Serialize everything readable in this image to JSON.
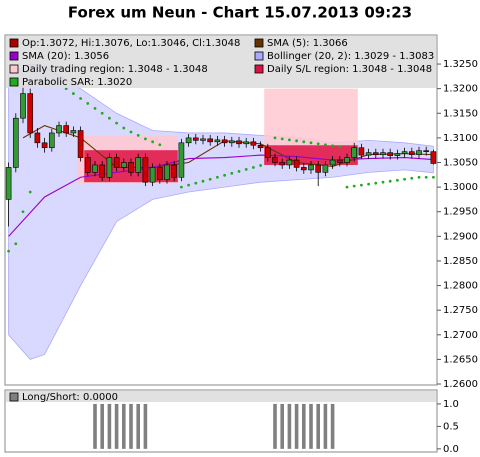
{
  "chart_data": [
    {
      "type": "candlestick",
      "title": "Forex um Neun - Chart 15.07.2013 09:23",
      "xlim": [
        -0.5,
        59.5
      ],
      "ylim": [
        1.2598,
        1.3309
      ],
      "yticks": [
        {
          "value": 1.26,
          "label": "1.2600"
        },
        {
          "value": 1.265,
          "label": "1.2650"
        },
        {
          "value": 1.27,
          "label": "1.2700"
        },
        {
          "value": 1.275,
          "label": "1.2750"
        },
        {
          "value": 1.28,
          "label": "1.2800"
        },
        {
          "value": 1.285,
          "label": "1.2850"
        },
        {
          "value": 1.29,
          "label": "1.2900"
        },
        {
          "value": 1.295,
          "label": "1.2950"
        },
        {
          "value": 1.3,
          "label": "1.3000"
        },
        {
          "value": 1.305,
          "label": "1.3050"
        },
        {
          "value": 1.31,
          "label": "1.3100"
        },
        {
          "value": 1.315,
          "label": "1.3150"
        },
        {
          "value": 1.32,
          "label": "1.3200"
        },
        {
          "value": 1.325,
          "label": "1.3250"
        }
      ],
      "series": [
        {
          "name": "Op:1.3072, Hi:1.3076, Lo:1.3046, Cl:1.3048",
          "type": "candle",
          "color": "#aa0000",
          "up_color": "#339933",
          "down_color": "#cc0000",
          "open": [
            1.2975,
            1.304,
            1.314,
            1.319,
            1.311,
            1.309,
            1.308,
            1.311,
            1.3125,
            1.311,
            1.3115,
            1.306,
            1.303,
            1.3045,
            1.302,
            1.306,
            1.304,
            1.305,
            1.303,
            1.306,
            1.301,
            1.304,
            1.3015,
            1.3045,
            1.302,
            1.309,
            1.31,
            1.3095,
            1.3098,
            1.3092,
            1.3096,
            1.309,
            1.3094,
            1.3088,
            1.3092,
            1.3085,
            1.308,
            1.306,
            1.305,
            1.3045,
            1.3055,
            1.304,
            1.3035,
            1.3045,
            1.303,
            1.3045,
            1.3055,
            1.305,
            1.306,
            1.308,
            1.3065,
            1.307,
            1.3066,
            1.307,
            1.3064,
            1.3068,
            1.3072,
            1.3066,
            1.3074,
            1.3072
          ],
          "high": [
            1.305,
            1.315,
            1.321,
            1.32,
            1.312,
            1.31,
            1.3118,
            1.3133,
            1.3133,
            1.3123,
            1.3123,
            1.3068,
            1.3053,
            1.3053,
            1.3068,
            1.3068,
            1.3058,
            1.3058,
            1.3068,
            1.3068,
            1.3048,
            1.3048,
            1.3053,
            1.3053,
            1.3098,
            1.3108,
            1.3108,
            1.3106,
            1.3106,
            1.3104,
            1.3104,
            1.3102,
            1.3102,
            1.31,
            1.31,
            1.3093,
            1.3088,
            1.3068,
            1.3058,
            1.3063,
            1.3063,
            1.3048,
            1.3053,
            1.3053,
            1.3053,
            1.3063,
            1.3063,
            1.3068,
            1.309,
            1.3088,
            1.3078,
            1.3078,
            1.3078,
            1.3078,
            1.3076,
            1.308,
            1.308,
            1.3082,
            1.3082,
            1.3076
          ],
          "low": [
            1.292,
            1.303,
            1.313,
            1.31,
            1.308,
            1.307,
            1.3072,
            1.3102,
            1.3102,
            1.3102,
            1.3052,
            1.3022,
            1.3022,
            1.3012,
            1.3012,
            1.3032,
            1.3032,
            1.3022,
            1.3022,
            1.3002,
            1.3002,
            1.3007,
            1.3007,
            1.3012,
            1.3012,
            1.3082,
            1.3087,
            1.3087,
            1.3084,
            1.3084,
            1.3082,
            1.3082,
            1.308,
            1.308,
            1.3077,
            1.3072,
            1.3052,
            1.3042,
            1.3037,
            1.3037,
            1.3032,
            1.3027,
            1.3027,
            1.3002,
            1.3022,
            1.3037,
            1.3042,
            1.3042,
            1.3052,
            1.3057,
            1.3057,
            1.3058,
            1.3058,
            1.3056,
            1.3056,
            1.306,
            1.3058,
            1.3058,
            1.3064,
            1.3046
          ],
          "close": [
            1.304,
            1.314,
            1.319,
            1.311,
            1.309,
            1.308,
            1.311,
            1.3125,
            1.311,
            1.3115,
            1.306,
            1.303,
            1.3045,
            1.302,
            1.306,
            1.304,
            1.305,
            1.303,
            1.306,
            1.301,
            1.304,
            1.3015,
            1.3045,
            1.302,
            1.309,
            1.31,
            1.3095,
            1.3098,
            1.3092,
            1.3096,
            1.309,
            1.3094,
            1.3088,
            1.3092,
            1.3085,
            1.308,
            1.306,
            1.305,
            1.3045,
            1.3055,
            1.304,
            1.3035,
            1.3045,
            1.303,
            1.3045,
            1.3055,
            1.305,
            1.306,
            1.308,
            1.3065,
            1.307,
            1.3066,
            1.307,
            1.3064,
            1.3068,
            1.3072,
            1.3066,
            1.3074,
            1.3072,
            1.3048
          ]
        },
        {
          "name": "SMA (5): 1.3066",
          "type": "line",
          "color": "#663300",
          "x": [
            2,
            5,
            10,
            15,
            20,
            25,
            30,
            35,
            40,
            45,
            50,
            55,
            59
          ],
          "values": [
            1.31,
            1.3125,
            1.31,
            1.304,
            1.304,
            1.305,
            1.3094,
            1.3088,
            1.305,
            1.3042,
            1.3066,
            1.3068,
            1.3066
          ]
        },
        {
          "name": "SMA (20): 1.3056",
          "type": "line",
          "color": "#9900cc",
          "x": [
            0,
            5,
            10,
            15,
            20,
            25,
            30,
            35,
            40,
            45,
            50,
            55,
            59
          ],
          "values": [
            1.29,
            1.298,
            1.302,
            1.303,
            1.304,
            1.3058,
            1.306,
            1.3065,
            1.3062,
            1.3055,
            1.3058,
            1.306,
            1.3056
          ]
        },
        {
          "name": "Bollinger (20, 2): 1.3029 - 1.3083",
          "type": "band",
          "color": "#aaaaff",
          "x": [
            0,
            3,
            5,
            10,
            15,
            20,
            25,
            30,
            35,
            40,
            45,
            50,
            55,
            59
          ],
          "upper": [
            1.323,
            1.325,
            1.3245,
            1.32,
            1.315,
            1.3115,
            1.311,
            1.311,
            1.3105,
            1.31,
            1.309,
            1.3095,
            1.309,
            1.3083
          ],
          "lower": [
            1.27,
            1.265,
            1.266,
            1.28,
            1.293,
            1.2975,
            1.299,
            1.3,
            1.301,
            1.3015,
            1.302,
            1.303,
            1.3035,
            1.3029
          ]
        },
        {
          "name": "Daily trading region: 1.3048 - 1.3048",
          "type": "region",
          "color": "#ffc8d0",
          "regions": [
            {
              "x": [
                10,
                23
              ],
              "range": [
                1.3008,
                1.3105
              ]
            },
            {
              "x": [
                36,
                48
              ],
              "range": [
                1.3045,
                1.32
              ]
            }
          ]
        },
        {
          "name": "Daily S/L region: 1.3048 - 1.3048",
          "type": "region",
          "color": "#dd1144",
          "regions": [
            {
              "x": [
                11,
                23
              ],
              "range": [
                1.301,
                1.3075
              ]
            },
            {
              "x": [
                36,
                48
              ],
              "range": [
                1.3045,
                1.3085
              ]
            }
          ]
        },
        {
          "name": "Parabolic SAR: 1.3020",
          "type": "dots",
          "color": "#22aa22",
          "x": [
            0,
            1,
            2,
            3,
            8,
            9,
            10,
            11,
            12,
            13,
            14,
            15,
            16,
            17,
            18,
            19,
            20,
            21,
            24,
            25,
            26,
            27,
            28,
            29,
            30,
            31,
            32,
            33,
            34,
            35,
            37,
            38,
            39,
            40,
            41,
            42,
            43,
            44,
            45,
            46,
            47,
            48,
            49,
            50,
            51,
            52,
            53,
            54,
            55,
            56,
            57,
            58,
            59
          ],
          "values": [
            1.287,
            1.2885,
            1.295,
            1.299,
            1.32,
            1.319,
            1.318,
            1.317,
            1.316,
            1.315,
            1.314,
            1.313,
            1.312,
            1.3112,
            1.3105,
            1.3098,
            1.3092,
            1.3086,
            1.3,
            1.3004,
            1.3008,
            1.3012,
            1.3016,
            1.302,
            1.3024,
            1.3028,
            1.3032,
            1.3036,
            1.304,
            1.3044,
            1.31,
            1.3098,
            1.3096,
            1.3094,
            1.3092,
            1.309,
            1.3088,
            1.3086,
            1.3084,
            1.3082,
            1.3,
            1.3002,
            1.3004,
            1.3006,
            1.3008,
            1.301,
            1.3012,
            1.3014,
            1.3016,
            1.3018,
            1.302,
            1.302,
            1.302
          ]
        }
      ]
    },
    {
      "type": "bar",
      "xlim": [
        -0.5,
        59.5
      ],
      "ylim": [
        -0.07,
        1.31
      ],
      "yticks": [
        {
          "value": 0,
          "label": "0.0"
        },
        {
          "value": 0.5,
          "label": "0.5"
        },
        {
          "value": 1,
          "label": "1.0"
        }
      ],
      "series": [
        {
          "name": "Long/Short: 0.0000",
          "color": "#808080",
          "values": [
            0,
            0,
            0,
            0,
            0,
            0,
            0,
            0,
            0,
            0,
            0,
            0,
            1,
            1,
            1,
            1,
            1,
            1,
            1,
            1,
            0,
            0,
            0,
            0,
            0,
            0,
            0,
            0,
            0,
            0,
            0,
            0,
            0,
            0,
            0,
            0,
            0,
            1,
            1,
            1,
            1,
            1,
            1,
            1,
            1,
            1,
            0,
            0,
            0,
            0,
            0,
            0,
            0,
            0,
            0,
            0,
            0,
            0,
            0,
            0
          ]
        }
      ]
    }
  ]
}
